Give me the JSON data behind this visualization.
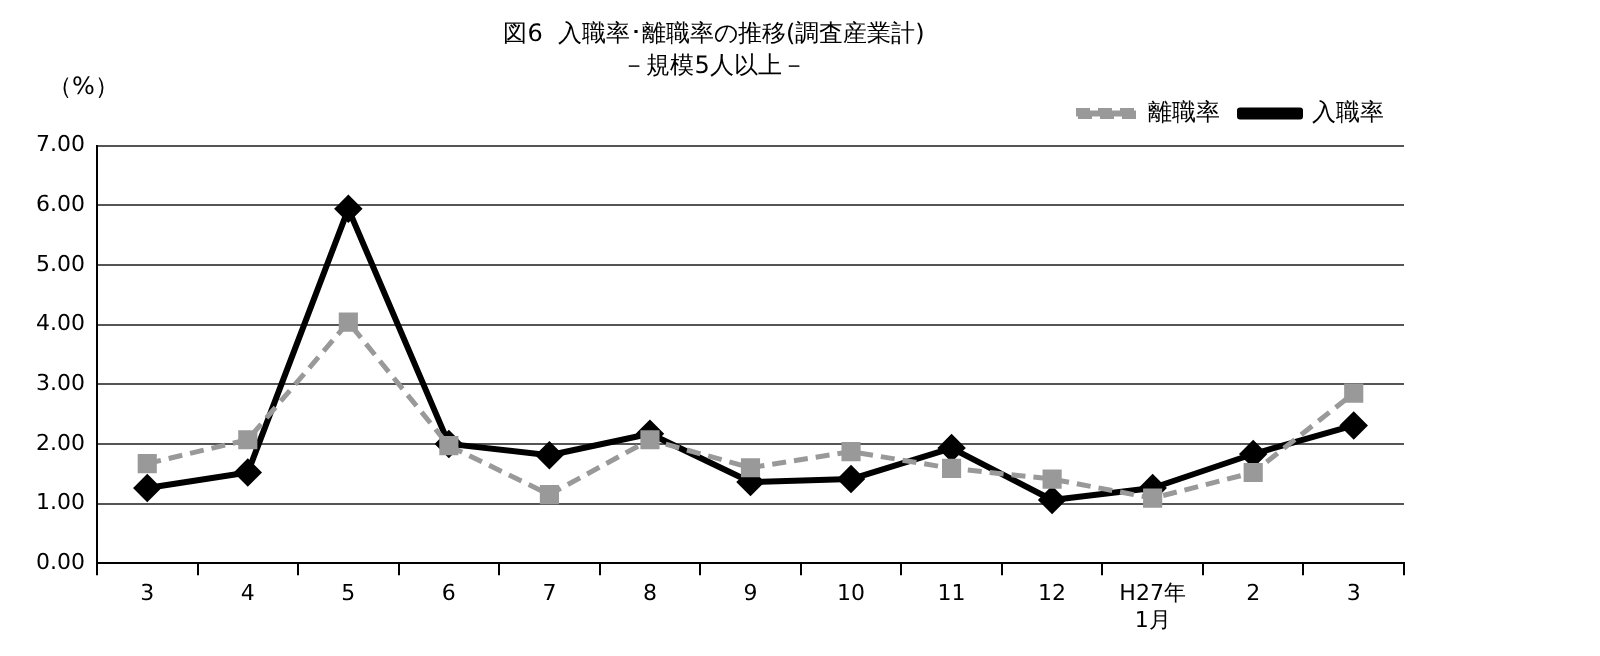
{
  "chart_data": {
    "type": "line",
    "title": "図6  入職率･離職率の推移(調査産業計)",
    "subtitle": "－規模5人以上－",
    "ylabel": "（%）",
    "categories": [
      "3",
      "4",
      "5",
      "6",
      "7",
      "8",
      "9",
      "10",
      "11",
      "12",
      "H27年\n1月",
      "2",
      "3"
    ],
    "series": [
      {
        "name": "入職率",
        "color": "#000000",
        "marker": "diamond",
        "line_style": "solid",
        "values": [
          1.26,
          1.52,
          5.94,
          2.0,
          1.81,
          2.17,
          1.36,
          1.41,
          1.93,
          1.06,
          1.26,
          1.83,
          2.31
        ]
      },
      {
        "name": "離職率",
        "color": "#999999",
        "marker": "square",
        "line_style": "dashed",
        "values": [
          1.67,
          2.07,
          4.04,
          1.97,
          1.15,
          2.07,
          1.6,
          1.87,
          1.59,
          1.41,
          1.09,
          1.52,
          2.85
        ]
      }
    ],
    "ylim": [
      0,
      7
    ],
    "yticks": [
      {
        "value": 0,
        "label": "0.00"
      },
      {
        "value": 1,
        "label": "1.00"
      },
      {
        "value": 2,
        "label": "2.00"
      },
      {
        "value": 3,
        "label": "3.00"
      },
      {
        "value": 4,
        "label": "4.00"
      },
      {
        "value": 5,
        "label": "5.00"
      },
      {
        "value": 6,
        "label": "6.00"
      },
      {
        "value": 7,
        "label": "7.00"
      }
    ],
    "grid": "y",
    "legend": "top right"
  }
}
